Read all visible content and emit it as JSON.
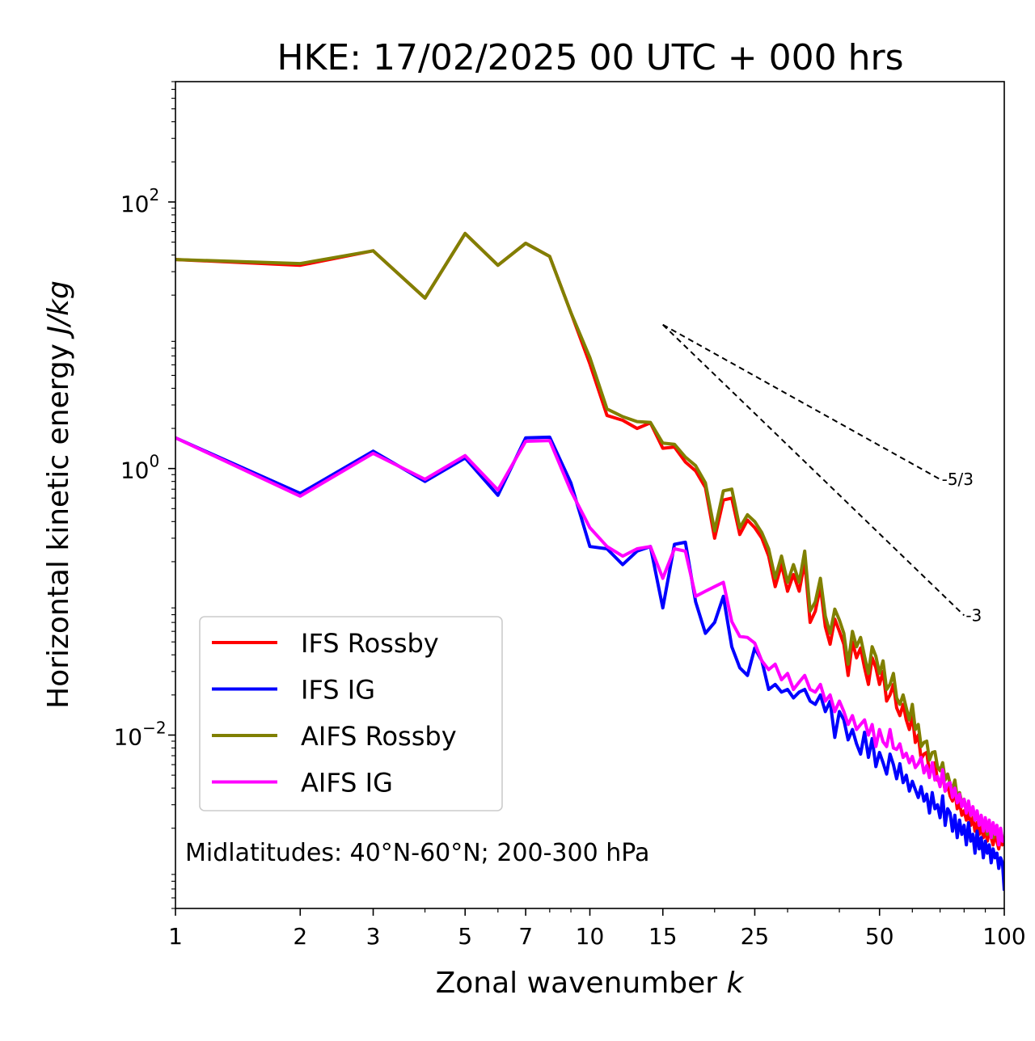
{
  "chart_data": {
    "type": "line",
    "title": "HKE: 17/02/2025 00 UTC + 000 hrs",
    "xlabel_prefix": "Zonal wavenumber ",
    "xlabel_var": "k",
    "ylabel_prefix": "Horizontal kinetic energy ",
    "ylabel_var": "J/kg",
    "x_scale": "log",
    "y_scale": "log",
    "xlim": [
      1,
      100
    ],
    "ylim": [
      0.0005,
      800
    ],
    "x_ticks": [
      1,
      2,
      3,
      5,
      7,
      10,
      15,
      25,
      50,
      100
    ],
    "x_tick_labels": [
      "1",
      "2",
      "3",
      "5",
      "7",
      "10",
      "15",
      "25",
      "50",
      "100"
    ],
    "y_ticks": [
      0.01,
      1,
      100
    ],
    "y_tick_labels": [
      {
        "base": "10",
        "exp": "−2"
      },
      {
        "base": "10",
        "exp": "0"
      },
      {
        "base": "10",
        "exp": "2"
      }
    ],
    "grid": false,
    "legend_position": "lower-left",
    "annotation": "Midlatitudes: 40°N-60°N; 200-300 hPa",
    "reference_lines": [
      {
        "label": "-5/3",
        "x": [
          15,
          70
        ],
        "y": [
          12.0,
          0.83
        ]
      },
      {
        "label": "-3",
        "x": [
          15,
          80
        ],
        "y": [
          12.0,
          0.079
        ]
      }
    ],
    "series": [
      {
        "name": "IFS Rossby",
        "color": "#ff0000",
        "x": [
          1,
          2,
          3,
          4,
          5,
          6,
          7,
          8,
          9,
          10,
          11,
          12,
          13,
          14,
          15,
          16,
          17,
          18,
          19,
          20,
          21,
          22,
          23,
          24,
          25,
          26,
          27,
          28,
          29,
          30,
          31,
          32,
          33,
          34,
          35,
          36,
          37,
          38,
          39,
          40,
          41,
          42,
          43,
          44,
          45,
          46,
          47,
          48,
          49,
          50,
          51,
          52,
          53,
          54,
          55,
          56,
          57,
          58,
          59,
          60,
          61,
          62,
          63,
          64,
          65,
          66,
          67,
          68,
          69,
          70,
          71,
          72,
          73,
          74,
          75,
          76,
          77,
          78,
          79,
          80,
          81,
          82,
          83,
          84,
          85,
          86,
          87,
          88,
          89,
          90,
          91,
          92,
          93,
          94,
          95,
          96,
          97,
          98,
          99,
          100
        ],
        "y": [
          37,
          33.5,
          43,
          19,
          58,
          33.5,
          49,
          39,
          14.8,
          6.1,
          2.5,
          2.3,
          2.0,
          2.2,
          1.42,
          1.45,
          1.12,
          0.96,
          0.72,
          0.3,
          0.58,
          0.6,
          0.32,
          0.41,
          0.36,
          0.3,
          0.22,
          0.13,
          0.19,
          0.12,
          0.16,
          0.12,
          0.2,
          0.07,
          0.085,
          0.13,
          0.065,
          0.048,
          0.074,
          0.06,
          0.048,
          0.028,
          0.05,
          0.038,
          0.045,
          0.032,
          0.024,
          0.038,
          0.032,
          0.024,
          0.03,
          0.018,
          0.02,
          0.024,
          0.016,
          0.014,
          0.017,
          0.013,
          0.011,
          0.014,
          0.0088,
          0.01,
          0.0066,
          0.0072,
          0.0074,
          0.0052,
          0.0061,
          0.0062,
          0.0046,
          0.0044,
          0.005,
          0.0038,
          0.0042,
          0.0035,
          0.0032,
          0.0038,
          0.0028,
          0.0031,
          0.0025,
          0.0027,
          0.0023,
          0.0026,
          0.0021,
          0.0024,
          0.0019,
          0.0022,
          0.0018,
          0.0021,
          0.0017,
          0.002,
          0.0016,
          0.0019,
          0.0017,
          0.0015,
          0.0018,
          0.0016,
          0.0014,
          0.0017,
          0.0015,
          0.0016
        ]
      },
      {
        "name": "IFS IG",
        "color": "#0000ff",
        "x": [
          1,
          2,
          3,
          4,
          5,
          6,
          7,
          8,
          9,
          10,
          11,
          12,
          13,
          14,
          15,
          16,
          17,
          18,
          19,
          20,
          21,
          22,
          23,
          24,
          25,
          26,
          27,
          28,
          29,
          30,
          31,
          32,
          33,
          34,
          35,
          36,
          37,
          38,
          39,
          40,
          41,
          42,
          43,
          44,
          45,
          46,
          47,
          48,
          49,
          50,
          51,
          52,
          53,
          54,
          55,
          56,
          57,
          58,
          59,
          60,
          61,
          62,
          63,
          64,
          65,
          66,
          67,
          68,
          69,
          70,
          71,
          72,
          73,
          74,
          75,
          76,
          77,
          78,
          79,
          80,
          81,
          82,
          83,
          84,
          85,
          86,
          87,
          88,
          89,
          90,
          91,
          92,
          93,
          94,
          95,
          96,
          97,
          98,
          99,
          100
        ],
        "y": [
          1.7,
          0.65,
          1.35,
          0.8,
          1.2,
          0.63,
          1.7,
          1.72,
          0.78,
          0.26,
          0.25,
          0.19,
          0.24,
          0.26,
          0.09,
          0.27,
          0.28,
          0.1,
          0.058,
          0.07,
          0.11,
          0.046,
          0.032,
          0.028,
          0.045,
          0.036,
          0.022,
          0.024,
          0.021,
          0.022,
          0.019,
          0.021,
          0.022,
          0.018,
          0.017,
          0.02,
          0.015,
          0.018,
          0.0096,
          0.015,
          0.013,
          0.0092,
          0.011,
          0.0086,
          0.0072,
          0.0105,
          0.0068,
          0.0094,
          0.0058,
          0.0074,
          0.0062,
          0.0051,
          0.0072,
          0.006,
          0.0047,
          0.0061,
          0.0044,
          0.005,
          0.0038,
          0.0045,
          0.0039,
          0.0034,
          0.0041,
          0.0032,
          0.0036,
          0.0026,
          0.0037,
          0.0028,
          0.003,
          0.0024,
          0.0035,
          0.0021,
          0.0028,
          0.0026,
          0.0019,
          0.0025,
          0.0017,
          0.0023,
          0.0018,
          0.0021,
          0.0015,
          0.0022,
          0.0016,
          0.0018,
          0.0013,
          0.0019,
          0.0014,
          0.0017,
          0.0012,
          0.0016,
          0.0013,
          0.0015,
          0.0011,
          0.0014,
          0.0012,
          0.0013,
          0.001,
          0.0012,
          0.0011,
          0.00068
        ]
      },
      {
        "name": "AIFS Rossby",
        "color": "#808000",
        "x": [
          1,
          2,
          3,
          4,
          5,
          6,
          7,
          8,
          9,
          10,
          11,
          12,
          13,
          14,
          15,
          16,
          17,
          18,
          19,
          20,
          21,
          22,
          23,
          24,
          25,
          26,
          27,
          28,
          29,
          30,
          31,
          32,
          33,
          34,
          35,
          36,
          37,
          38,
          39,
          40,
          41,
          42,
          43,
          44,
          45,
          46,
          47,
          48,
          49,
          50,
          51,
          52,
          53,
          54,
          55,
          56,
          57,
          58,
          59,
          60,
          61,
          62,
          63,
          64,
          65,
          66,
          67,
          68,
          69,
          70,
          71,
          72,
          73,
          74,
          75,
          76,
          77,
          78,
          79,
          80,
          81,
          82,
          83,
          84,
          85,
          86,
          87,
          88,
          89,
          90,
          91,
          92,
          93,
          94,
          95,
          96,
          97,
          98,
          99,
          100
        ],
        "y": [
          37,
          34.5,
          43,
          19,
          58,
          33.5,
          49,
          39,
          14.8,
          6.8,
          2.8,
          2.45,
          2.25,
          2.22,
          1.55,
          1.52,
          1.22,
          1.05,
          0.78,
          0.34,
          0.68,
          0.7,
          0.36,
          0.45,
          0.4,
          0.33,
          0.25,
          0.15,
          0.22,
          0.14,
          0.19,
          0.14,
          0.24,
          0.085,
          0.1,
          0.15,
          0.078,
          0.058,
          0.088,
          0.073,
          0.058,
          0.034,
          0.06,
          0.046,
          0.054,
          0.039,
          0.029,
          0.046,
          0.039,
          0.029,
          0.036,
          0.022,
          0.024,
          0.029,
          0.019,
          0.017,
          0.02,
          0.016,
          0.013,
          0.017,
          0.011,
          0.012,
          0.0082,
          0.0088,
          0.009,
          0.0065,
          0.0074,
          0.0075,
          0.0058,
          0.0054,
          0.0062,
          0.0046,
          0.0051,
          0.0043,
          0.0039,
          0.0046,
          0.0034,
          0.0037,
          0.0031,
          0.0033,
          0.0027,
          0.0031,
          0.0025,
          0.0028,
          0.0023,
          0.0026,
          0.0021,
          0.0024,
          0.002,
          0.0023,
          0.0018,
          0.0022,
          0.0019,
          0.0017,
          0.002,
          0.0018,
          0.0016,
          0.0019,
          0.0017,
          0.0017
        ]
      },
      {
        "name": "AIFS IG",
        "color": "#ff00ff",
        "x": [
          1,
          2,
          3,
          4,
          5,
          6,
          7,
          8,
          9,
          10,
          11,
          12,
          13,
          14,
          15,
          16,
          17,
          18,
          19,
          20,
          21,
          22,
          23,
          24,
          25,
          26,
          27,
          28,
          29,
          30,
          31,
          32,
          33,
          34,
          35,
          36,
          37,
          38,
          39,
          40,
          41,
          42,
          43,
          44,
          45,
          46,
          47,
          48,
          49,
          50,
          51,
          52,
          53,
          54,
          55,
          56,
          57,
          58,
          59,
          60,
          61,
          62,
          63,
          64,
          65,
          66,
          67,
          68,
          69,
          70,
          71,
          72,
          73,
          74,
          75,
          76,
          77,
          78,
          79,
          80,
          81,
          82,
          83,
          84,
          85,
          86,
          87,
          88,
          89,
          90,
          91,
          92,
          93,
          94,
          95,
          96,
          97,
          98,
          99,
          100
        ],
        "y": [
          1.7,
          0.62,
          1.3,
          0.83,
          1.25,
          0.69,
          1.6,
          1.62,
          0.68,
          0.36,
          0.26,
          0.22,
          0.25,
          0.26,
          0.15,
          0.25,
          0.24,
          0.11,
          0.12,
          0.13,
          0.14,
          0.071,
          0.055,
          0.054,
          0.049,
          0.036,
          0.031,
          0.034,
          0.026,
          0.029,
          0.022,
          0.025,
          0.028,
          0.022,
          0.021,
          0.024,
          0.018,
          0.02,
          0.015,
          0.018,
          0.015,
          0.012,
          0.014,
          0.011,
          0.012,
          0.013,
          0.01,
          0.012,
          0.0082,
          0.011,
          0.0089,
          0.0082,
          0.011,
          0.008,
          0.0078,
          0.0086,
          0.0068,
          0.0073,
          0.0062,
          0.0069,
          0.0057,
          0.0061,
          0.0068,
          0.0052,
          0.0059,
          0.0048,
          0.0062,
          0.0046,
          0.0049,
          0.0041,
          0.0055,
          0.0038,
          0.0043,
          0.0044,
          0.0034,
          0.004,
          0.0031,
          0.0036,
          0.0029,
          0.0033,
          0.0026,
          0.0032,
          0.0025,
          0.0029,
          0.0023,
          0.0027,
          0.0021,
          0.0025,
          0.0019,
          0.0024,
          0.0019,
          0.0023,
          0.0017,
          0.0022,
          0.0018,
          0.0021,
          0.0015,
          0.002,
          0.0016,
          0.0016
        ]
      }
    ]
  }
}
